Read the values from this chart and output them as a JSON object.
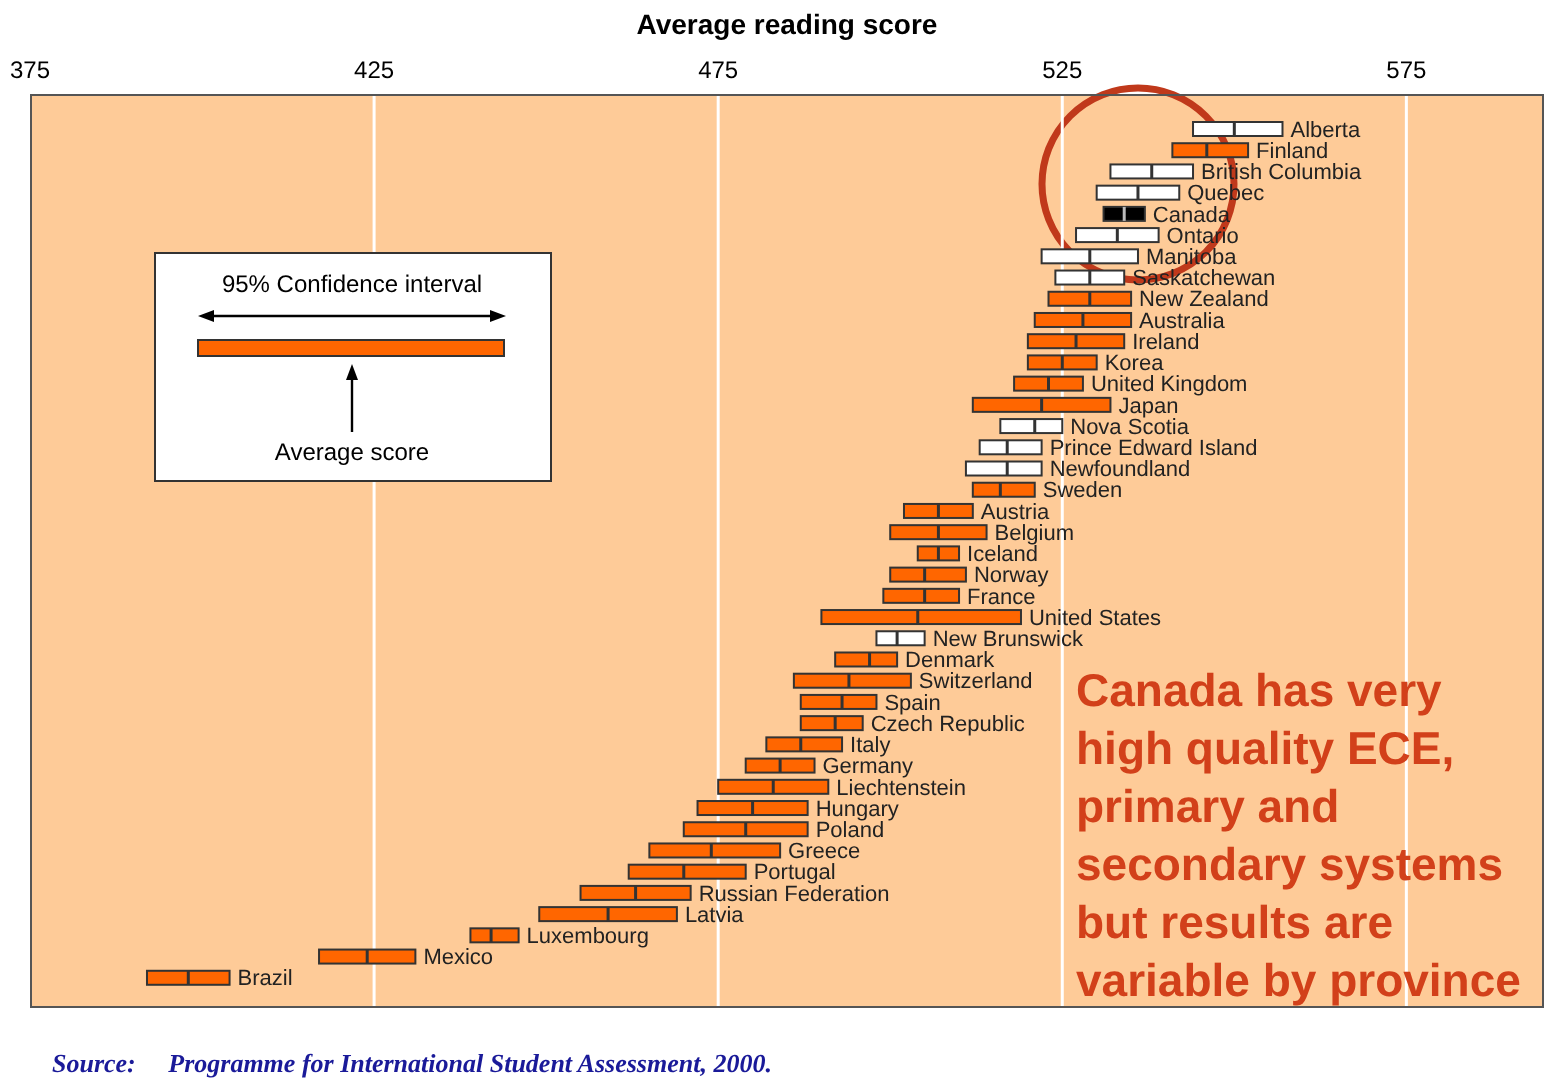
{
  "chart_data": {
    "type": "box",
    "orientation": "horizontal",
    "xlabel": "Average reading score",
    "categories": [
      "Alberta",
      "Finland",
      "British Columbia",
      "Quebec",
      "Canada",
      "Ontario",
      "Manitoba",
      "Saskatchewan",
      "New Zealand",
      "Australia",
      "Ireland",
      "Korea",
      "United Kingdom",
      "Japan",
      "Nova Scotia",
      "Prince Edward Island",
      "Newfoundland",
      "Sweden",
      "Austria",
      "Belgium",
      "Iceland",
      "Norway",
      "France",
      "United States",
      "New Brunswick",
      "Denmark",
      "Switzerland",
      "Spain",
      "Czech Republic",
      "Italy",
      "Germany",
      "Liechtenstein",
      "Hungary",
      "Poland",
      "Greece",
      "Portugal",
      "Russian Federation",
      "Latvia",
      "Luxembourg",
      "Mexico",
      "Brazil"
    ],
    "boxes": [
      {
        "low": 544,
        "q1": 544,
        "median": 550,
        "q3": 557,
        "high": 557
      },
      {
        "low": 541,
        "q1": 541,
        "median": 546,
        "q3": 552,
        "high": 552
      },
      {
        "low": 532,
        "q1": 532,
        "median": 538,
        "q3": 544,
        "high": 544
      },
      {
        "low": 530,
        "q1": 530,
        "median": 536,
        "q3": 542,
        "high": 542
      },
      {
        "low": 531,
        "q1": 531,
        "median": 534,
        "q3": 537,
        "high": 537
      },
      {
        "low": 527,
        "q1": 527,
        "median": 533,
        "q3": 539,
        "high": 539
      },
      {
        "low": 522,
        "q1": 522,
        "median": 529,
        "q3": 536,
        "high": 536
      },
      {
        "low": 524,
        "q1": 524,
        "median": 529,
        "q3": 534,
        "high": 534
      },
      {
        "low": 523,
        "q1": 523,
        "median": 529,
        "q3": 535,
        "high": 535
      },
      {
        "low": 521,
        "q1": 521,
        "median": 528,
        "q3": 535,
        "high": 535
      },
      {
        "low": 520,
        "q1": 520,
        "median": 527,
        "q3": 534,
        "high": 534
      },
      {
        "low": 520,
        "q1": 520,
        "median": 525,
        "q3": 530,
        "high": 530
      },
      {
        "low": 518,
        "q1": 518,
        "median": 523,
        "q3": 528,
        "high": 528
      },
      {
        "low": 512,
        "q1": 512,
        "median": 522,
        "q3": 532,
        "high": 532
      },
      {
        "low": 516,
        "q1": 516,
        "median": 521,
        "q3": 525,
        "high": 525
      },
      {
        "low": 513,
        "q1": 513,
        "median": 517,
        "q3": 522,
        "high": 522
      },
      {
        "low": 511,
        "q1": 511,
        "median": 517,
        "q3": 522,
        "high": 522
      },
      {
        "low": 512,
        "q1": 512,
        "median": 516,
        "q3": 521,
        "high": 521
      },
      {
        "low": 502,
        "q1": 502,
        "median": 507,
        "q3": 512,
        "high": 512
      },
      {
        "low": 500,
        "q1": 500,
        "median": 507,
        "q3": 514,
        "high": 514
      },
      {
        "low": 504,
        "q1": 504,
        "median": 507,
        "q3": 510,
        "high": 510
      },
      {
        "low": 500,
        "q1": 500,
        "median": 505,
        "q3": 511,
        "high": 511
      },
      {
        "low": 499,
        "q1": 499,
        "median": 505,
        "q3": 510,
        "high": 510
      },
      {
        "low": 490,
        "q1": 490,
        "median": 504,
        "q3": 519,
        "high": 519
      },
      {
        "low": 498,
        "q1": 498,
        "median": 501,
        "q3": 505,
        "high": 505
      },
      {
        "low": 492,
        "q1": 492,
        "median": 497,
        "q3": 501,
        "high": 501
      },
      {
        "low": 486,
        "q1": 486,
        "median": 494,
        "q3": 503,
        "high": 503
      },
      {
        "low": 487,
        "q1": 487,
        "median": 493,
        "q3": 498,
        "high": 498
      },
      {
        "low": 487,
        "q1": 487,
        "median": 492,
        "q3": 496,
        "high": 496
      },
      {
        "low": 482,
        "q1": 482,
        "median": 487,
        "q3": 493,
        "high": 493
      },
      {
        "low": 479,
        "q1": 479,
        "median": 484,
        "q3": 489,
        "high": 489
      },
      {
        "low": 475,
        "q1": 475,
        "median": 483,
        "q3": 491,
        "high": 491
      },
      {
        "low": 472,
        "q1": 472,
        "median": 480,
        "q3": 488,
        "high": 488
      },
      {
        "low": 470,
        "q1": 470,
        "median": 479,
        "q3": 488,
        "high": 488
      },
      {
        "low": 465,
        "q1": 465,
        "median": 474,
        "q3": 484,
        "high": 484
      },
      {
        "low": 462,
        "q1": 462,
        "median": 470,
        "q3": 479,
        "high": 479
      },
      {
        "low": 455,
        "q1": 455,
        "median": 463,
        "q3": 471,
        "high": 471
      },
      {
        "low": 449,
        "q1": 449,
        "median": 459,
        "q3": 469,
        "high": 469
      },
      {
        "low": 439,
        "q1": 439,
        "median": 442,
        "q3": 446,
        "high": 446
      },
      {
        "low": 417,
        "q1": 417,
        "median": 424,
        "q3": 431,
        "high": 431
      },
      {
        "low": 392,
        "q1": 392,
        "median": 398,
        "q3": 404,
        "high": 404
      }
    ],
    "colors": [
      "#ffffff",
      "#ff6600",
      "#ffffff",
      "#ffffff",
      "#000000",
      "#ffffff",
      "#ffffff",
      "#ffffff",
      "#ff6600",
      "#ff6600",
      "#ff6600",
      "#ff6600",
      "#ff6600",
      "#ff6600",
      "#ffffff",
      "#ffffff",
      "#ffffff",
      "#ff6600",
      "#ff6600",
      "#ff6600",
      "#ff6600",
      "#ff6600",
      "#ff6600",
      "#ff6600",
      "#ffffff",
      "#ff6600",
      "#ff6600",
      "#ff6600",
      "#ff6600",
      "#ff6600",
      "#ff6600",
      "#ff6600",
      "#ff6600",
      "#ff6600",
      "#ff6600",
      "#ff6600",
      "#ff6600",
      "#ff6600",
      "#ff6600",
      "#ff6600",
      "#ff6600"
    ],
    "xlim": [
      375,
      595
    ],
    "xticks": [
      375,
      425,
      475,
      525,
      575
    ],
    "grid": "x",
    "tick_labels": "x",
    "annotations": [
      "95% Confidence interval",
      "Average score",
      "Canada has very high quality ECE, primary and secondary systems but results are variable by province",
      "Source:     Programme for International Student Assessment, 2000."
    ]
  }
}
